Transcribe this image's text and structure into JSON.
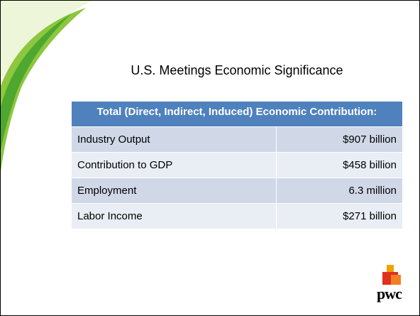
{
  "slide": {
    "title": "U.S. Meetings Economic Significance",
    "table": {
      "header": "Total (Direct, Indirect, Induced) Economic Contribution:",
      "rows": [
        [
          "Industry Output",
          "$907 billion"
        ],
        [
          "Contribution to GDP",
          "$458 billion"
        ],
        [
          "Employment",
          "6.3 million"
        ],
        [
          "Labor Income",
          "$271 billion"
        ]
      ]
    },
    "logo": "pwc"
  }
}
